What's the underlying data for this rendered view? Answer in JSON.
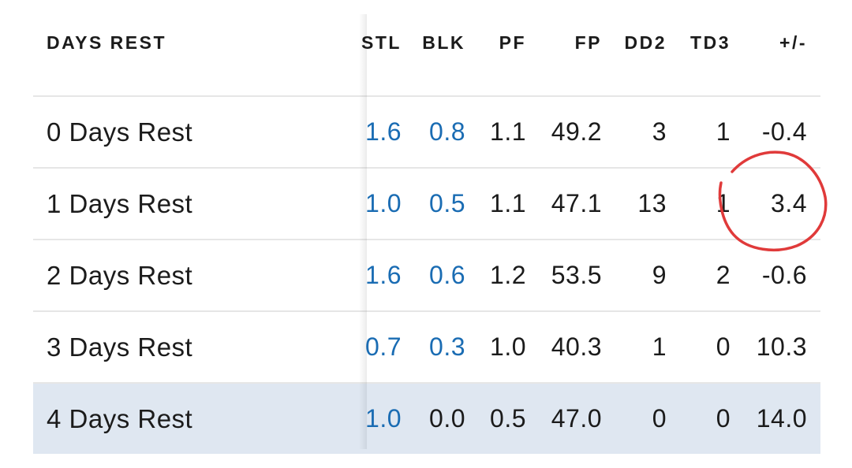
{
  "header": {
    "label": "DAYS REST",
    "columns": [
      "STL",
      "BLK",
      "PF",
      "FP",
      "DD2",
      "TD3",
      "+/-"
    ]
  },
  "rows": [
    {
      "label": "0 Days Rest",
      "stl": "1.6",
      "blk": "0.8",
      "pf": "1.1",
      "fp": "49.2",
      "dd2": "3",
      "td3": "1",
      "pm": "-0.4"
    },
    {
      "label": "1 Days Rest",
      "stl": "1.0",
      "blk": "0.5",
      "pf": "1.1",
      "fp": "47.1",
      "dd2": "13",
      "td3": "1",
      "pm": "3.4"
    },
    {
      "label": "2 Days Rest",
      "stl": "1.6",
      "blk": "0.6",
      "pf": "1.2",
      "fp": "53.5",
      "dd2": "9",
      "td3": "2",
      "pm": "-0.6"
    },
    {
      "label": "3 Days Rest",
      "stl": "0.7",
      "blk": "0.3",
      "pf": "1.0",
      "fp": "40.3",
      "dd2": "1",
      "td3": "0",
      "pm": "10.3"
    },
    {
      "label": "4 Days Rest",
      "stl": "1.0",
      "blk": "0.0",
      "pf": "0.5",
      "fp": "47.0",
      "dd2": "0",
      "td3": "0",
      "pm": "14.0"
    }
  ],
  "colors": {
    "link": "#1a6cb3",
    "highlight_row": "#dfe7f1",
    "annotation": "#e03a3a"
  }
}
